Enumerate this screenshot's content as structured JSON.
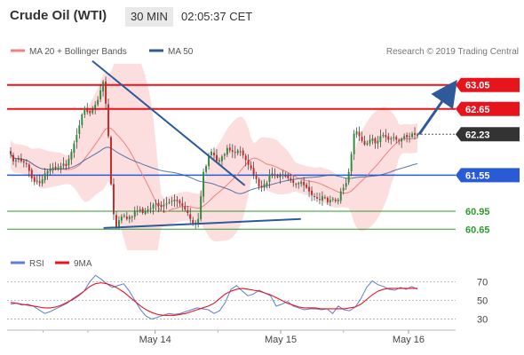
{
  "header": {
    "title": "Crude Oil (WTI)",
    "timeframe": "30 MIN",
    "time": "02:05:37 CET"
  },
  "legend": {
    "ma20": {
      "label": "MA 20 + Bollinger Bands",
      "color": "#f08080"
    },
    "ma50": {
      "label": "MA 50",
      "color": "#2e5a9c"
    },
    "copyright": "Research © 2019 Trading Central"
  },
  "chart_data": [
    {
      "type": "candlestick",
      "title": "Crude Oil (WTI)",
      "x_tick_labels": [
        "May 14",
        "May 15",
        "May 16"
      ],
      "ylim": [
        60.3,
        63.4
      ],
      "levels": [
        {
          "label": "63.05",
          "value": 63.05,
          "color": "#e8141c",
          "style": "resistance"
        },
        {
          "label": "62.65",
          "value": 62.65,
          "color": "#e8141c",
          "style": "resistance"
        },
        {
          "label": "62.23",
          "value": 62.23,
          "color": "#333333",
          "style": "current"
        },
        {
          "label": "61.55",
          "value": 61.55,
          "color": "#2a5bd7",
          "style": "pivot"
        },
        {
          "label": "60.95",
          "value": 60.95,
          "color": "#2e9a2e",
          "style": "support"
        },
        {
          "label": "60.65",
          "value": 60.65,
          "color": "#2e9a2e",
          "style": "support"
        }
      ],
      "candles": {
        "count": 155,
        "close": [
          61.9,
          61.78,
          61.8,
          61.82,
          61.78,
          61.76,
          61.74,
          61.62,
          61.5,
          61.44,
          61.46,
          61.42,
          61.48,
          61.58,
          61.62,
          61.64,
          61.68,
          61.66,
          61.68,
          61.7,
          61.74,
          61.7,
          61.82,
          61.94,
          62.08,
          62.22,
          62.38,
          62.56,
          62.66,
          62.6,
          62.58,
          62.64,
          62.72,
          62.8,
          62.96,
          63.1,
          62.74,
          62.2,
          61.4,
          60.9,
          60.68,
          60.8,
          60.86,
          60.88,
          60.82,
          60.86,
          60.86,
          60.94,
          60.96,
          60.98,
          60.92,
          60.96,
          60.98,
          61.0,
          61.06,
          61.08,
          61.04,
          61.02,
          61.06,
          61.08,
          61.1,
          61.12,
          61.14,
          61.12,
          61.08,
          61.04,
          60.98,
          60.92,
          60.82,
          60.74,
          60.76,
          60.82,
          61.2,
          61.6,
          61.7,
          61.88,
          61.94,
          61.88,
          61.78,
          61.8,
          61.86,
          61.9,
          62.0,
          61.96,
          61.94,
          61.92,
          61.96,
          61.94,
          61.88,
          61.8,
          61.72,
          61.66,
          61.56,
          61.48,
          61.36,
          61.34,
          61.4,
          61.42,
          61.56,
          61.58,
          61.54,
          61.52,
          61.54,
          61.56,
          61.54,
          61.5,
          61.46,
          61.42,
          61.4,
          61.42,
          61.44,
          61.38,
          61.34,
          61.28,
          61.22,
          61.2,
          61.16,
          61.14,
          61.2,
          61.18,
          61.1,
          61.14,
          61.16,
          61.12,
          61.14,
          61.28,
          61.34,
          61.42,
          61.6,
          61.9,
          62.24,
          62.28,
          62.2,
          62.12,
          62.06,
          62.08,
          62.14,
          62.16,
          62.08,
          62.12,
          62.2,
          62.22,
          62.18,
          62.14,
          62.16,
          62.18,
          62.14,
          62.12,
          62.16,
          62.2,
          62.18,
          62.2,
          62.24,
          62.22,
          62.23
        ]
      },
      "ma20": {
        "color": "#f08080"
      },
      "ma50": {
        "color": "#2e5a9c"
      },
      "annotations": [
        {
          "type": "trendline",
          "from": [
            0.19,
            63.45
          ],
          "to": [
            0.53,
            61.38
          ]
        },
        {
          "type": "trendline",
          "from": [
            0.215,
            60.67
          ],
          "to": [
            0.655,
            60.82
          ]
        },
        {
          "type": "arrow",
          "direction": "up",
          "from": 62.23,
          "to": 63.05
        }
      ]
    },
    {
      "type": "line",
      "title": "RSI",
      "ylim": [
        20,
        82
      ],
      "ticks": [
        70,
        50,
        30
      ],
      "series": [
        {
          "name": "RSI",
          "color": "#5b7fd6",
          "values": [
            46,
            47,
            45,
            46,
            44,
            40,
            36,
            38,
            41,
            44,
            47,
            52,
            56,
            60,
            70,
            77,
            73,
            68,
            64,
            66,
            68,
            60,
            50,
            40,
            33,
            30,
            32,
            34,
            36,
            35,
            36,
            38,
            40,
            42,
            41,
            40,
            36,
            39,
            48,
            62,
            66,
            60,
            55,
            57,
            61,
            58,
            55,
            44,
            46,
            49,
            44,
            42,
            40,
            41,
            41,
            40,
            41,
            36,
            44,
            40,
            39,
            43,
            52,
            64,
            71,
            67,
            65,
            62,
            61,
            64,
            62,
            65,
            62
          ]
        },
        {
          "name": "9MA",
          "color": "#e8141c",
          "values": [
            48,
            47,
            46,
            45,
            44,
            43,
            42,
            42,
            43,
            45,
            48,
            51,
            55,
            60,
            65,
            68,
            69,
            68,
            66,
            63,
            59,
            54,
            49,
            44,
            40,
            37,
            35,
            34,
            34,
            34,
            35,
            36,
            38,
            40,
            42,
            44,
            47,
            52,
            57,
            60,
            62,
            63,
            62,
            61,
            60,
            58,
            56,
            53,
            50,
            47,
            45,
            43,
            42,
            42,
            42,
            41,
            41,
            41,
            41,
            41,
            42,
            43,
            46,
            51,
            56,
            60,
            62,
            63,
            63,
            63,
            63,
            63,
            63
          ]
        }
      ]
    }
  ]
}
